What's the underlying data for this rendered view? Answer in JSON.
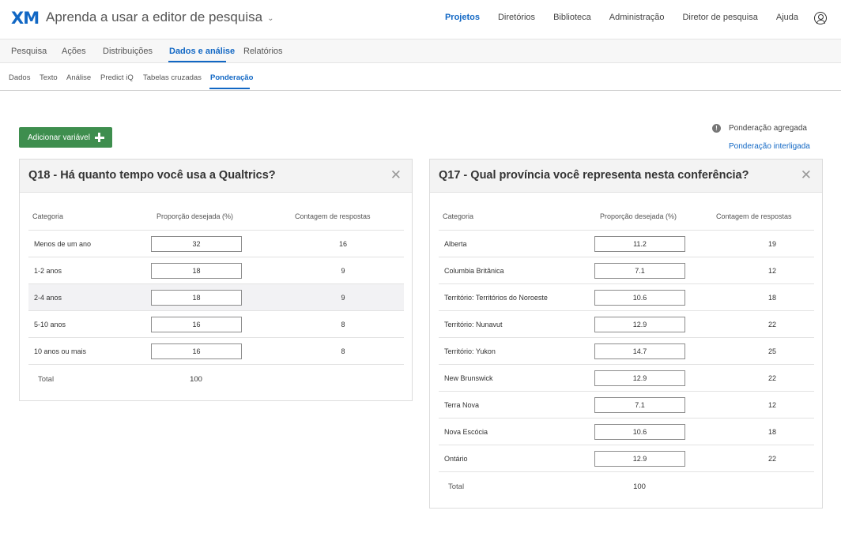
{
  "header": {
    "logo": "XM",
    "project_title": "Aprenda a usar a editor de pesquisa",
    "nav": [
      "Projetos",
      "Diretórios",
      "Biblioteca",
      "Administração",
      "Diretor de pesquisa",
      "Ajuda"
    ],
    "active_nav": "Projetos"
  },
  "tabs_primary": [
    "Pesquisa",
    "Ações",
    "Distribuições",
    "Dados e análise",
    "Relatórios"
  ],
  "tabs_secondary": [
    "Dados",
    "Texto",
    "Análise",
    "Predict iQ",
    "Tabelas cruzadas",
    "Ponderação"
  ],
  "toolbar": {
    "add_variable": "Adicionar variável",
    "aggregate": "Ponderação agregada",
    "interlocked": "Ponderação interligada"
  },
  "cards": [
    {
      "title": "Q18 - Há quanto tempo você usa a Qualtrics?",
      "headers": [
        "Categoria",
        "Proporção desejada (%)",
        "Contagem de respostas"
      ],
      "rows": [
        {
          "category": "Menos de um ano",
          "target": "32",
          "count": "16"
        },
        {
          "category": "1-2 anos",
          "target": "18",
          "count": "9"
        },
        {
          "category": "2-4 anos",
          "target": "18",
          "count": "9"
        },
        {
          "category": "5-10 anos",
          "target": "16",
          "count": "8"
        },
        {
          "category": "10 anos ou mais",
          "target": "16",
          "count": "8"
        }
      ],
      "total_label": "Total",
      "total_value": "100"
    },
    {
      "title": "Q17 - Qual província você representa nesta conferência?",
      "headers": [
        "Categoria",
        "Proporção desejada (%)",
        "Contagem de respostas"
      ],
      "rows": [
        {
          "category": "Alberta",
          "target": "11.2",
          "count": "19"
        },
        {
          "category": "Columbia Britânica",
          "target": "7.1",
          "count": "12"
        },
        {
          "category": "Território: Territórios do Noroeste",
          "target": "10.6",
          "count": "18"
        },
        {
          "category": "Território: Nunavut",
          "target": "12.9",
          "count": "22"
        },
        {
          "category": "Território: Yukon",
          "target": "14.7",
          "count": "25"
        },
        {
          "category": "New Brunswick",
          "target": "12.9",
          "count": "22"
        },
        {
          "category": "Terra Nova",
          "target": "7.1",
          "count": "12"
        },
        {
          "category": "Nova Escócia",
          "target": "10.6",
          "count": "18"
        },
        {
          "category": "Ontário",
          "target": "12.9",
          "count": "22"
        }
      ],
      "total_label": "Total",
      "total_value": "100"
    }
  ]
}
